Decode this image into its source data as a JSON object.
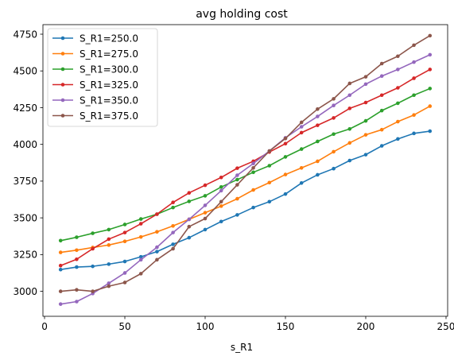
{
  "chart_data": {
    "type": "line",
    "title": "avg holding cost",
    "xlabel": "s_R1",
    "ylabel": "",
    "xlim": [
      -1,
      251
    ],
    "ylim": [
      2830,
      4815
    ],
    "xticks": [
      0,
      50,
      100,
      150,
      200,
      250
    ],
    "yticks": [
      3000,
      3250,
      3500,
      3750,
      4000,
      4250,
      4500,
      4750
    ],
    "grid": false,
    "legend_position": "top-left",
    "x": [
      10,
      20,
      30,
      40,
      50,
      60,
      70,
      80,
      90,
      100,
      110,
      120,
      130,
      140,
      150,
      160,
      170,
      180,
      190,
      200,
      210,
      220,
      230,
      240
    ],
    "series": [
      {
        "name": "S_R1=250.0",
        "color": "#1f77b4",
        "values": [
          3148,
          3165,
          3170,
          3185,
          3203,
          3235,
          3270,
          3320,
          3365,
          3420,
          3475,
          3520,
          3570,
          3610,
          3662,
          3737,
          3793,
          3835,
          3890,
          3930,
          3990,
          4037,
          4075,
          4090
        ]
      },
      {
        "name": "S_R1=275.0",
        "color": "#ff7f0e",
        "values": [
          3265,
          3280,
          3298,
          3315,
          3340,
          3370,
          3405,
          3445,
          3490,
          3535,
          3580,
          3630,
          3690,
          3740,
          3795,
          3840,
          3885,
          3950,
          4010,
          4065,
          4100,
          4155,
          4200,
          4260
        ]
      },
      {
        "name": "S_R1=300.0",
        "color": "#2ca02c",
        "values": [
          3345,
          3368,
          3395,
          3420,
          3455,
          3492,
          3525,
          3570,
          3612,
          3650,
          3710,
          3760,
          3810,
          3855,
          3915,
          3968,
          4020,
          4070,
          4105,
          4160,
          4230,
          4280,
          4335,
          4380
        ]
      },
      {
        "name": "S_R1=325.0",
        "color": "#d62728",
        "values": [
          3175,
          3218,
          3290,
          3355,
          3400,
          3460,
          3525,
          3605,
          3670,
          3722,
          3775,
          3838,
          3885,
          3948,
          4005,
          4080,
          4130,
          4180,
          4245,
          4285,
          4335,
          4385,
          4450,
          4510
        ]
      },
      {
        "name": "S_R1=350.0",
        "color": "#9467bd",
        "values": [
          2913,
          2930,
          2985,
          3055,
          3125,
          3215,
          3300,
          3400,
          3490,
          3585,
          3685,
          3790,
          3870,
          3955,
          4045,
          4120,
          4190,
          4265,
          4335,
          4410,
          4465,
          4510,
          4560,
          4610
        ]
      },
      {
        "name": "S_R1=375.0",
        "color": "#8c564b",
        "values": [
          3000,
          3010,
          3000,
          3035,
          3060,
          3120,
          3215,
          3290,
          3440,
          3495,
          3610,
          3725,
          3840,
          3955,
          4040,
          4150,
          4240,
          4310,
          4415,
          4460,
          4550,
          4600,
          4675,
          4740
        ]
      }
    ]
  }
}
